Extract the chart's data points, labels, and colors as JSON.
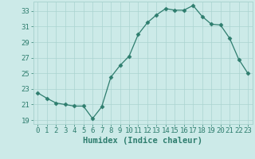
{
  "x": [
    0,
    1,
    2,
    3,
    4,
    5,
    6,
    7,
    8,
    9,
    10,
    11,
    12,
    13,
    14,
    15,
    16,
    17,
    18,
    19,
    20,
    21,
    22,
    23
  ],
  "y": [
    22.5,
    21.8,
    21.2,
    21.0,
    20.8,
    20.8,
    19.2,
    20.7,
    24.5,
    26.0,
    27.2,
    30.0,
    31.5,
    32.5,
    33.3,
    33.1,
    33.1,
    33.7,
    32.3,
    31.3,
    31.2,
    29.5,
    26.8,
    25.0
  ],
  "line_color": "#2e7d6e",
  "marker": "D",
  "marker_size": 2.5,
  "bg_color": "#cceae8",
  "grid_color": "#aad4d0",
  "xlabel": "Humidex (Indice chaleur)",
  "xlim": [
    -0.5,
    23.5
  ],
  "ylim": [
    18.5,
    34.2
  ],
  "yticks": [
    19,
    21,
    23,
    25,
    27,
    29,
    31,
    33
  ],
  "xtick_labels": [
    "0",
    "1",
    "2",
    "3",
    "4",
    "5",
    "6",
    "7",
    "8",
    "9",
    "10",
    "11",
    "12",
    "13",
    "14",
    "15",
    "16",
    "17",
    "18",
    "19",
    "20",
    "21",
    "22",
    "23"
  ],
  "label_fontsize": 7.5,
  "tick_fontsize": 6.5
}
